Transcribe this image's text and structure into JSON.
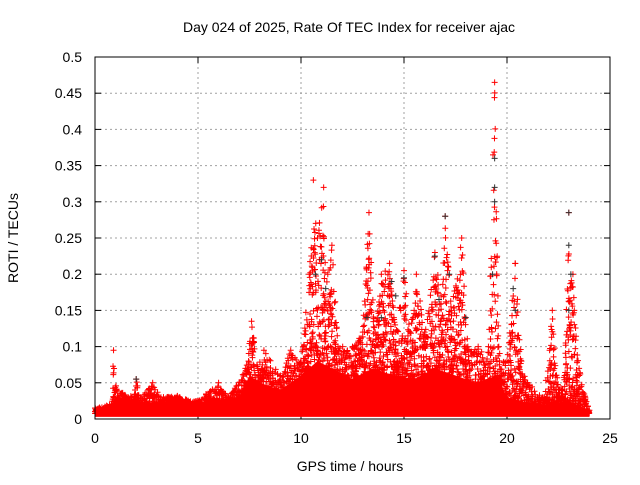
{
  "chart_data": {
    "type": "scatter",
    "title": "Day 024 of 2025, Rate Of TEC Index for receiver ajac",
    "xlabel": "GPS time / hours",
    "ylabel": "ROTI / TECUs",
    "xlim": [
      0,
      25
    ],
    "ylim": [
      0,
      0.5
    ],
    "xticks": [
      "0",
      "5",
      "10",
      "15",
      "20",
      "25"
    ],
    "yticks": [
      "0",
      "0.05",
      "0.1",
      "0.15",
      "0.2",
      "0.25",
      "0.3",
      "0.35",
      "0.4",
      "0.45",
      "0.5"
    ],
    "grid": true,
    "marker": "+",
    "colors": {
      "primary": "#ff0000",
      "secondary": "#333333"
    },
    "dense_band_upper": [
      [
        0,
        0.012
      ],
      [
        0.8,
        0.018
      ],
      [
        1,
        0.03
      ],
      [
        2,
        0.025
      ],
      [
        3,
        0.022
      ],
      [
        4,
        0.028
      ],
      [
        5,
        0.02
      ],
      [
        6,
        0.025
      ],
      [
        7,
        0.03
      ],
      [
        7.5,
        0.06
      ],
      [
        8,
        0.05
      ],
      [
        9,
        0.04
      ],
      [
        10,
        0.06
      ],
      [
        10.8,
        0.08
      ],
      [
        11.5,
        0.07
      ],
      [
        12.5,
        0.055
      ],
      [
        13.5,
        0.07
      ],
      [
        14.5,
        0.06
      ],
      [
        15.5,
        0.055
      ],
      [
        16.5,
        0.07
      ],
      [
        17.5,
        0.06
      ],
      [
        18.5,
        0.05
      ],
      [
        19.5,
        0.06
      ],
      [
        20,
        0.03
      ],
      [
        21,
        0.022
      ],
      [
        22,
        0.02
      ],
      [
        23,
        0.025
      ],
      [
        24,
        0.012
      ]
    ],
    "peak_envelope": [
      [
        0,
        0.015
      ],
      [
        0.8,
        0.02
      ],
      [
        0.9,
        0.095
      ],
      [
        1.05,
        0.04
      ],
      [
        1.9,
        0.03
      ],
      [
        2,
        0.055
      ],
      [
        2.2,
        0.03
      ],
      [
        2.8,
        0.05
      ],
      [
        3.2,
        0.03
      ],
      [
        4,
        0.032
      ],
      [
        5,
        0.025
      ],
      [
        6,
        0.05
      ],
      [
        6.5,
        0.03
      ],
      [
        7.3,
        0.07
      ],
      [
        7.6,
        0.135
      ],
      [
        7.9,
        0.07
      ],
      [
        8.2,
        0.095
      ],
      [
        9,
        0.06
      ],
      [
        9.5,
        0.095
      ],
      [
        10,
        0.08
      ],
      [
        10.4,
        0.2
      ],
      [
        10.6,
        0.33
      ],
      [
        10.8,
        0.25
      ],
      [
        11.1,
        0.32
      ],
      [
        11.3,
        0.2
      ],
      [
        11.5,
        0.24
      ],
      [
        11.8,
        0.1
      ],
      [
        12.5,
        0.1
      ],
      [
        13,
        0.12
      ],
      [
        13.3,
        0.285
      ],
      [
        13.6,
        0.12
      ],
      [
        13.9,
        0.2
      ],
      [
        14.3,
        0.215
      ],
      [
        14.6,
        0.12
      ],
      [
        15,
        0.205
      ],
      [
        15.3,
        0.12
      ],
      [
        15.6,
        0.2
      ],
      [
        16,
        0.12
      ],
      [
        16.5,
        0.23
      ],
      [
        16.8,
        0.17
      ],
      [
        17,
        0.28
      ],
      [
        17.3,
        0.15
      ],
      [
        17.8,
        0.25
      ],
      [
        18.1,
        0.1
      ],
      [
        18.6,
        0.1
      ],
      [
        19.1,
        0.1
      ],
      [
        19.4,
        0.465
      ],
      [
        19.6,
        0.1
      ],
      [
        20,
        0.08
      ],
      [
        20.4,
        0.215
      ],
      [
        20.7,
        0.08
      ],
      [
        21,
        0.05
      ],
      [
        21.8,
        0.03
      ],
      [
        22.2,
        0.15
      ],
      [
        22.5,
        0.04
      ],
      [
        22.8,
        0.06
      ],
      [
        23,
        0.285
      ],
      [
        23.2,
        0.2
      ],
      [
        23.5,
        0.07
      ],
      [
        23.8,
        0.03
      ],
      [
        24,
        0.012
      ]
    ],
    "secondary_points": [
      [
        10.7,
        0.2
      ],
      [
        11,
        0.22
      ],
      [
        11.2,
        0.18
      ],
      [
        13.2,
        0.14
      ],
      [
        13.9,
        0.14
      ],
      [
        14.4,
        0.19
      ],
      [
        14.6,
        0.17
      ],
      [
        15,
        0.195
      ],
      [
        16.5,
        0.225
      ],
      [
        16.7,
        0.165
      ],
      [
        17,
        0.28
      ],
      [
        17.2,
        0.2
      ],
      [
        18,
        0.14
      ],
      [
        19.4,
        0.36
      ],
      [
        19.4,
        0.32
      ],
      [
        19.4,
        0.3
      ],
      [
        19.3,
        0.2
      ],
      [
        20.3,
        0.18
      ],
      [
        20.4,
        0.15
      ],
      [
        23,
        0.285
      ],
      [
        23,
        0.24
      ],
      [
        23.1,
        0.2
      ],
      [
        23,
        0.15
      ],
      [
        2,
        0.055
      ]
    ]
  }
}
